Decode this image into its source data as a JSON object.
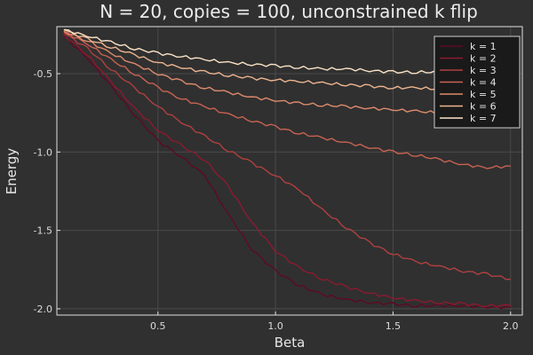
{
  "chart_data": {
    "type": "line",
    "title": "N = 20, copies = 100, unconstrained k flip",
    "xlabel": "Beta",
    "ylabel": "Energy",
    "xlim": [
      0.07,
      2.05
    ],
    "ylim": [
      -2.04,
      -0.2
    ],
    "xticks": [
      0.5,
      1.0,
      1.5,
      2.0
    ],
    "xtick_labels": [
      "0.5",
      "1.0",
      "1.5",
      "2.0"
    ],
    "yticks": [
      -0.5,
      -1.0,
      -1.5,
      -2.0
    ],
    "ytick_labels": [
      "-0.5",
      "-1.0",
      "-1.5",
      "-2.0"
    ],
    "grid": true,
    "legend_position": "top-right",
    "x": [
      0.1,
      0.2,
      0.3,
      0.4,
      0.5,
      0.6,
      0.7,
      0.8,
      0.9,
      1.0,
      1.1,
      1.2,
      1.3,
      1.4,
      1.5,
      1.6,
      1.7,
      1.8,
      1.9,
      2.0
    ],
    "series": [
      {
        "name": "k = 1",
        "color": "#5e0a24",
        "values": [
          -0.26,
          -0.4,
          -0.58,
          -0.76,
          -0.93,
          -1.03,
          -1.15,
          -1.4,
          -1.62,
          -1.76,
          -1.85,
          -1.91,
          -1.94,
          -1.96,
          -1.97,
          -1.98,
          -1.98,
          -1.98,
          -1.99,
          -1.99
        ]
      },
      {
        "name": "k = 2",
        "color": "#8c1a30",
        "values": [
          -0.25,
          -0.38,
          -0.55,
          -0.72,
          -0.86,
          -0.96,
          -1.05,
          -1.22,
          -1.45,
          -1.63,
          -1.74,
          -1.81,
          -1.86,
          -1.9,
          -1.93,
          -1.95,
          -1.96,
          -1.97,
          -1.98,
          -1.98
        ]
      },
      {
        "name": "k = 3",
        "color": "#b04040",
        "values": [
          -0.24,
          -0.34,
          -0.47,
          -0.59,
          -0.71,
          -0.81,
          -0.9,
          -0.99,
          -1.07,
          -1.15,
          -1.24,
          -1.37,
          -1.48,
          -1.58,
          -1.65,
          -1.7,
          -1.73,
          -1.76,
          -1.78,
          -1.81
        ]
      },
      {
        "name": "k = 4",
        "color": "#c86252",
        "values": [
          -0.23,
          -0.31,
          -0.41,
          -0.5,
          -0.59,
          -0.66,
          -0.71,
          -0.76,
          -0.8,
          -0.84,
          -0.88,
          -0.91,
          -0.94,
          -0.97,
          -1.0,
          -1.02,
          -1.05,
          -1.08,
          -1.1,
          -1.09
        ]
      },
      {
        "name": "k = 5",
        "color": "#dd8a6c",
        "values": [
          -0.23,
          -0.29,
          -0.37,
          -0.44,
          -0.5,
          -0.55,
          -0.59,
          -0.62,
          -0.65,
          -0.67,
          -0.69,
          -0.7,
          -0.71,
          -0.72,
          -0.73,
          -0.74,
          -0.75,
          -0.76,
          -0.78,
          -0.8
        ]
      },
      {
        "name": "k = 6",
        "color": "#edb48f",
        "values": [
          -0.22,
          -0.28,
          -0.33,
          -0.38,
          -0.43,
          -0.46,
          -0.49,
          -0.51,
          -0.53,
          -0.54,
          -0.55,
          -0.56,
          -0.57,
          -0.58,
          -0.59,
          -0.59,
          -0.6,
          -0.6,
          -0.61,
          -0.62
        ]
      },
      {
        "name": "k = 7",
        "color": "#fbe3c6",
        "values": [
          -0.22,
          -0.26,
          -0.3,
          -0.34,
          -0.37,
          -0.39,
          -0.41,
          -0.43,
          -0.44,
          -0.45,
          -0.46,
          -0.47,
          -0.47,
          -0.48,
          -0.49,
          -0.49,
          -0.49,
          -0.5,
          -0.5,
          -0.5
        ]
      }
    ]
  }
}
